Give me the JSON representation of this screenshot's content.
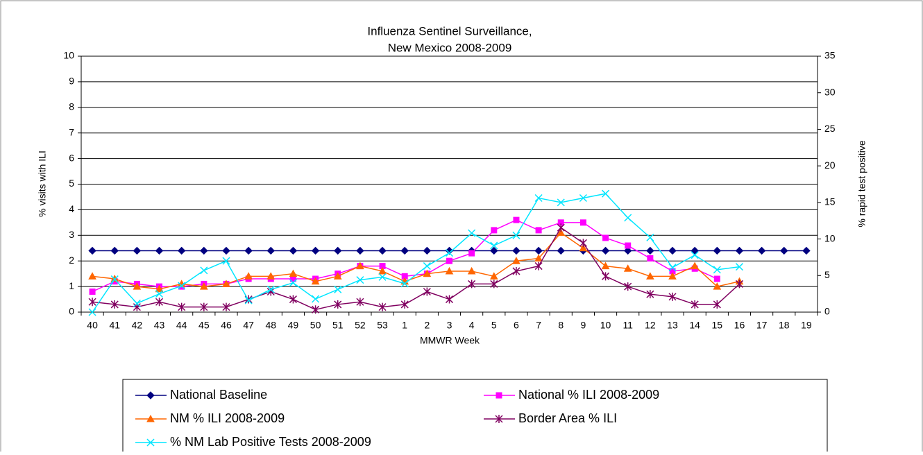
{
  "chart_data": {
    "type": "line",
    "title": [
      "Influenza Sentinel Surveillance,",
      "New Mexico 2008-2009"
    ],
    "x_label": "MMWR Week",
    "y_label": "% visits with ILI",
    "y2_label": "% rapid test positive",
    "categories": [
      "40",
      "41",
      "42",
      "43",
      "44",
      "45",
      "46",
      "47",
      "48",
      "49",
      "50",
      "51",
      "52",
      "53",
      "1",
      "2",
      "3",
      "4",
      "5",
      "6",
      "7",
      "8",
      "9",
      "10",
      "11",
      "12",
      "13",
      "14",
      "15",
      "16",
      "17",
      "18",
      "19"
    ],
    "ylim": [
      0,
      10
    ],
    "yticks": [
      0,
      1,
      2,
      3,
      4,
      5,
      6,
      7,
      8,
      9,
      10
    ],
    "y2lim": [
      0,
      35
    ],
    "y2ticks": [
      0,
      5,
      10,
      15,
      20,
      25,
      30,
      35
    ],
    "grid": true,
    "legend": "bottom",
    "series": [
      {
        "name": "National Baseline",
        "color": "#000080",
        "marker": "diamond",
        "values": [
          2.4,
          2.4,
          2.4,
          2.4,
          2.4,
          2.4,
          2.4,
          2.4,
          2.4,
          2.4,
          2.4,
          2.4,
          2.4,
          2.4,
          2.4,
          2.4,
          2.4,
          2.4,
          2.4,
          2.4,
          2.4,
          2.4,
          2.4,
          2.4,
          2.4,
          2.4,
          2.4,
          2.4,
          2.4,
          2.4,
          2.4,
          2.4,
          2.4
        ]
      },
      {
        "name": "National % ILI 2008-2009",
        "color": "#ff00ff",
        "marker": "square",
        "values": [
          0.8,
          1.2,
          1.1,
          1.0,
          1.0,
          1.1,
          1.1,
          1.3,
          1.3,
          1.3,
          1.3,
          1.5,
          1.8,
          1.8,
          1.4,
          1.5,
          2.0,
          2.3,
          3.2,
          3.6,
          3.2,
          3.5,
          3.5,
          2.9,
          2.6,
          2.1,
          1.6,
          1.7,
          1.3,
          null,
          null,
          null,
          null
        ]
      },
      {
        "name": "NM % ILI 2008-2009",
        "color": "#ff6600",
        "marker": "triangle",
        "values": [
          1.4,
          1.3,
          1.0,
          0.9,
          1.1,
          1.0,
          1.1,
          1.4,
          1.4,
          1.5,
          1.2,
          1.4,
          1.8,
          1.6,
          1.2,
          1.5,
          1.6,
          1.6,
          1.4,
          2.0,
          2.1,
          3.1,
          2.5,
          1.8,
          1.7,
          1.4,
          1.4,
          1.8,
          1.0,
          1.2,
          null,
          null,
          null
        ]
      },
      {
        "name": "Border Area % ILI",
        "color": "#800060",
        "marker": "star",
        "values": [
          0.4,
          0.3,
          0.2,
          0.4,
          0.2,
          0.2,
          0.2,
          0.5,
          0.8,
          0.5,
          0.1,
          0.3,
          0.4,
          0.2,
          0.3,
          0.8,
          0.5,
          1.1,
          1.1,
          1.6,
          1.8,
          3.3,
          2.7,
          1.4,
          1.0,
          0.7,
          0.6,
          0.3,
          0.3,
          1.1,
          null,
          null,
          null
        ]
      },
      {
        "name": "% NM Lab Positive Tests 2008-2009",
        "color": "#00e6ff",
        "marker": "x",
        "axis": "y2",
        "values": [
          0,
          4.5,
          1.2,
          2.5,
          3.6,
          5.7,
          7.0,
          1.6,
          3.1,
          4.0,
          1.8,
          3.1,
          4.4,
          4.8,
          3.9,
          6.3,
          8.1,
          10.8,
          9.1,
          10.5,
          15.6,
          15.0,
          15.6,
          16.2,
          12.9,
          10.2,
          6.1,
          7.8,
          5.8,
          6.2,
          null,
          null,
          null
        ]
      }
    ]
  }
}
